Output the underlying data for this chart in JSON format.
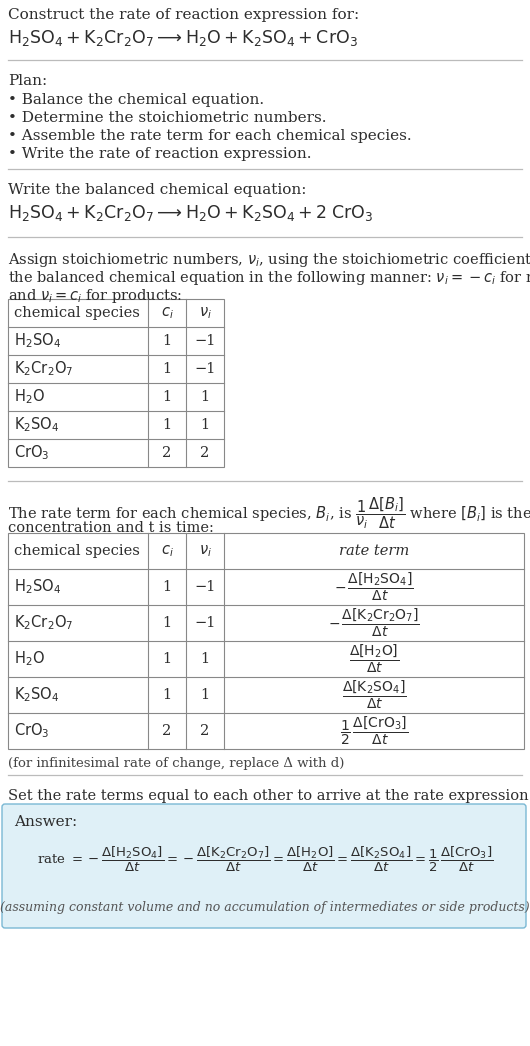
{
  "bg_color": "#ffffff",
  "text_color": "#2d2d2d",
  "table_border": "#888888",
  "hline_color": "#bbbbbb",
  "answer_box_color": "#dff0f7",
  "answer_border_color": "#7ab8d4",
  "plan_items": [
    "• Balance the chemical equation.",
    "• Determine the stoichiometric numbers.",
    "• Assemble the rate term for each chemical species.",
    "• Write the rate of reaction expression."
  ],
  "table1_rows": [
    [
      "H₂SO₄",
      "1",
      "−1"
    ],
    [
      "K₂Cr₂O₇",
      "1",
      "−1"
    ],
    [
      "H₂O",
      "1",
      "1"
    ],
    [
      "K₂SO₄",
      "1",
      "1"
    ],
    [
      "CrO₃",
      "2",
      "2"
    ]
  ],
  "table2_rows": [
    [
      "H₂SO₄",
      "1",
      "−1",
      "neg_h2so4"
    ],
    [
      "K₂Cr₂O₇",
      "1",
      "−1",
      "neg_k2cr2o7"
    ],
    [
      "H₂O",
      "1",
      "1",
      "pos_h2o"
    ],
    [
      "K₂SO₄",
      "1",
      "1",
      "pos_k2so4"
    ],
    [
      "CrO₃",
      "2",
      "2",
      "half_cro3"
    ]
  ],
  "final_note": "(assuming constant volume and no accumulation of intermediates or side products)"
}
